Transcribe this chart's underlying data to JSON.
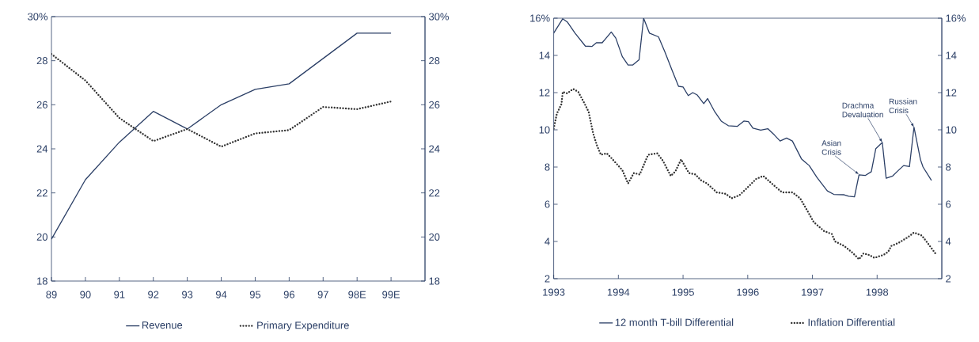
{
  "chart_data": [
    {
      "type": "line",
      "categories": [
        "89",
        "90",
        "91",
        "92",
        "93",
        "94",
        "95",
        "96",
        "97",
        "98E",
        "99E"
      ],
      "series": [
        {
          "name": "Revenue",
          "color": "#2b3f66",
          "line_style": "solid",
          "values": [
            19.9,
            22.6,
            24.3,
            25.7,
            24.9,
            26.0,
            26.7,
            26.95,
            28.1,
            29.25,
            29.25
          ]
        },
        {
          "name": "Primary Expenditure",
          "color": "#333333",
          "line_style": "dotted",
          "values": [
            28.3,
            27.1,
            25.4,
            24.35,
            24.9,
            24.1,
            24.7,
            24.85,
            25.9,
            25.8,
            26.15
          ]
        }
      ],
      "ylim": [
        18,
        30
      ],
      "yticks": [
        18,
        20,
        22,
        24,
        26,
        28,
        {
          "value": 30,
          "label": "30%"
        }
      ],
      "y2lim": [
        18,
        30
      ],
      "y2ticks": [
        18,
        20,
        22,
        24,
        26,
        28,
        {
          "value": 30,
          "label": "30%"
        }
      ],
      "legend": "bottom"
    },
    {
      "type": "line",
      "series": [
        {
          "name": "12 month T-bill Differential",
          "color": "#2b3f66",
          "line_style": "solid",
          "x": [
            1993.0,
            1993.14,
            1993.21,
            1993.33,
            1993.49,
            1993.59,
            1993.66,
            1993.75,
            1993.89,
            1993.96,
            1994.06,
            1994.15,
            1994.22,
            1994.32,
            1994.39,
            1994.48,
            1994.62,
            1994.72,
            1994.83,
            1994.93,
            1995.0,
            1995.08,
            1995.15,
            1995.22,
            1995.32,
            1995.38,
            1995.49,
            1995.59,
            1995.7,
            1995.84,
            1995.94,
            1996.01,
            1996.08,
            1996.2,
            1996.31,
            1996.41,
            1996.5,
            1996.6,
            1996.69,
            1996.83,
            1996.95,
            1997.07,
            1997.23,
            1997.33,
            1997.49,
            1997.56,
            1997.65,
            1997.72,
            1997.82,
            1997.91,
            1997.98,
            1998.08,
            1998.14,
            1998.24,
            1998.31,
            1998.41,
            1998.5,
            1998.57,
            1998.67,
            1998.71,
            1998.84
          ],
          "values": [
            15.2,
            15.97,
            15.8,
            15.2,
            14.5,
            14.48,
            14.68,
            14.68,
            15.26,
            14.93,
            13.94,
            13.48,
            13.48,
            13.77,
            16.0,
            15.2,
            15.0,
            14.18,
            13.2,
            12.34,
            12.3,
            11.84,
            12.0,
            11.87,
            11.41,
            11.68,
            10.97,
            10.47,
            10.22,
            10.19,
            10.47,
            10.44,
            10.09,
            9.98,
            10.06,
            9.73,
            9.4,
            9.56,
            9.4,
            8.44,
            8.08,
            7.44,
            6.72,
            6.53,
            6.51,
            6.43,
            6.4,
            7.58,
            7.55,
            7.75,
            8.99,
            9.32,
            7.4,
            7.52,
            7.76,
            8.08,
            8.03,
            10.14,
            8.4,
            8.0,
            7.28
          ]
        },
        {
          "name": "Inflation Differential",
          "color": "#333333",
          "line_style": "dotted",
          "x": [
            1993.0,
            1993.05,
            1993.12,
            1993.14,
            1993.21,
            1993.3,
            1993.38,
            1993.47,
            1993.54,
            1993.61,
            1993.67,
            1993.73,
            1993.82,
            1993.89,
            1994.06,
            1994.15,
            1994.24,
            1994.33,
            1994.46,
            1994.6,
            1994.69,
            1994.81,
            1994.88,
            1994.97,
            1995.09,
            1995.19,
            1995.28,
            1995.37,
            1995.52,
            1995.66,
            1995.75,
            1995.87,
            1995.99,
            1996.13,
            1996.24,
            1996.37,
            1996.53,
            1996.69,
            1996.81,
            1996.93,
            1997.02,
            1997.18,
            1997.3,
            1997.35,
            1997.49,
            1997.63,
            1997.72,
            1997.79,
            1997.87,
            1997.96,
            1998.1,
            1998.17,
            1998.22,
            1998.33,
            1998.48,
            1998.57,
            1998.69,
            1998.78,
            1998.9
          ],
          "values": [
            10.06,
            10.88,
            11.38,
            12.04,
            11.96,
            12.2,
            12.04,
            11.46,
            10.97,
            9.81,
            9.15,
            8.66,
            8.74,
            8.49,
            7.84,
            7.12,
            7.68,
            7.6,
            8.66,
            8.74,
            8.33,
            7.52,
            7.76,
            8.41,
            7.68,
            7.6,
            7.28,
            7.12,
            6.64,
            6.56,
            6.32,
            6.48,
            6.88,
            7.36,
            7.52,
            7.12,
            6.64,
            6.64,
            6.32,
            5.6,
            5.04,
            4.56,
            4.4,
            4.0,
            3.76,
            3.36,
            3.04,
            3.36,
            3.28,
            3.12,
            3.28,
            3.44,
            3.76,
            3.92,
            4.24,
            4.48,
            4.32,
            3.92,
            3.36
          ]
        }
      ],
      "xlim": [
        1993,
        1999
      ],
      "xticks": [
        1993,
        1994,
        1995,
        1996,
        1997,
        1998
      ],
      "ylim": [
        2,
        16
      ],
      "yticks": [
        2,
        4,
        6,
        8,
        10,
        12,
        14,
        {
          "value": 16,
          "label": "16%"
        }
      ],
      "y2lim": [
        2,
        16
      ],
      "y2ticks": [
        2,
        4,
        6,
        8,
        10,
        12,
        14,
        {
          "value": 16,
          "label": "16%"
        }
      ],
      "annotations": [
        {
          "text": "Asian Crisis",
          "x": 1997.72,
          "y": 7.6
        },
        {
          "text": "Drachma Devaluation",
          "x": 1998.08,
          "y": 9.32
        },
        {
          "text": "Russian Crisis",
          "x": 1998.57,
          "y": 10.14
        }
      ],
      "legend": "bottom"
    }
  ]
}
